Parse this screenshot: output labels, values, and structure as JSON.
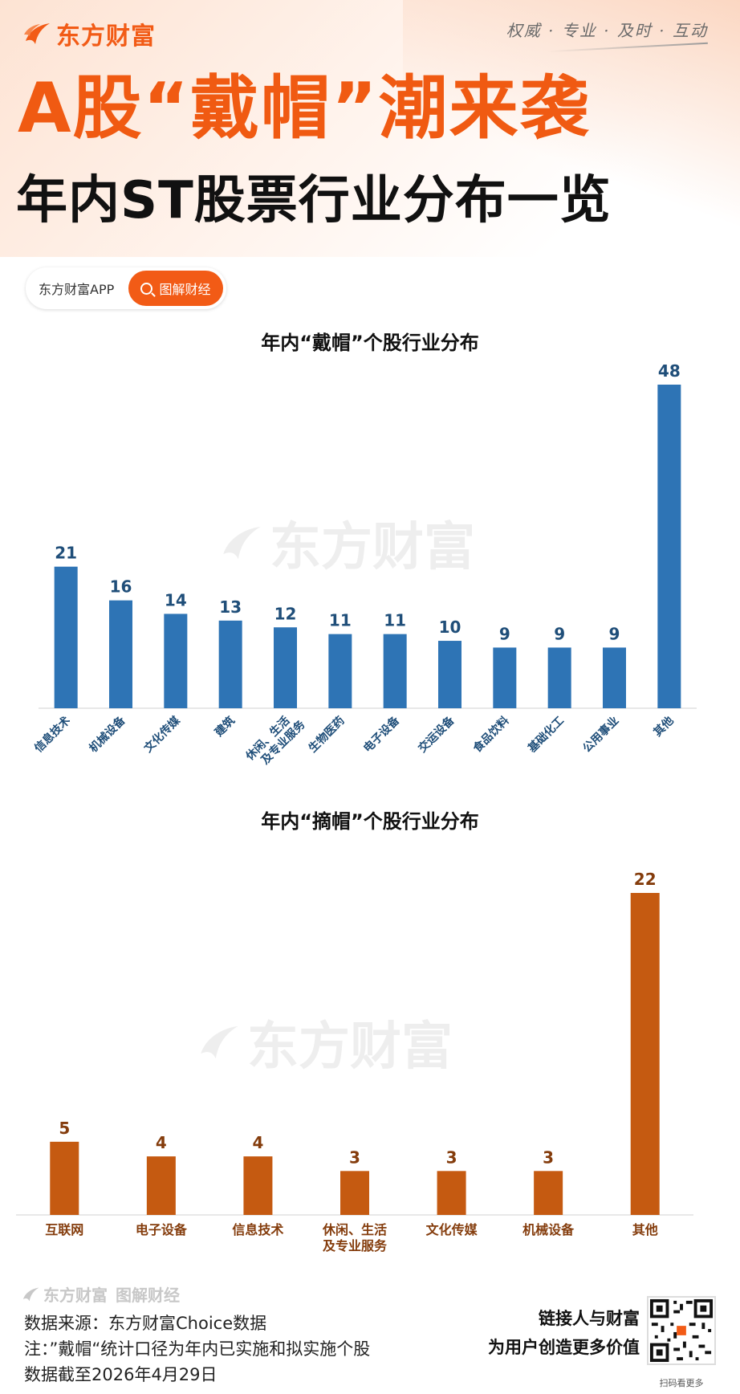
{
  "brand": {
    "name": "东方财富",
    "slogan": "权威 · 专业 · 及时 · 互动",
    "accent": "#f25b16"
  },
  "title": {
    "line1": "A股“戴帽”潮来袭",
    "line2": "年内ST股票行业分布一览"
  },
  "search": {
    "app_label": "东方财富APP",
    "button_label": "图解财经",
    "icon": "search-icon"
  },
  "watermark": "东方财富",
  "chart_data": [
    {
      "type": "bar",
      "title": "年内“戴帽”个股行业分布",
      "color": "#2e74b5",
      "label_color": "#1f4e79",
      "categories": [
        "信息技术",
        "机械设备",
        "文化传媒",
        "建筑",
        "休闲、生活|及专业服务",
        "生物医药",
        "电子设备",
        "交运设备",
        "食品饮料",
        "基础化工",
        "公用事业",
        "其他"
      ],
      "values": [
        21,
        16,
        14,
        13,
        12,
        11,
        11,
        10,
        9,
        9,
        9,
        48
      ],
      "ylim": [
        0,
        48
      ],
      "grid": false
    },
    {
      "type": "bar",
      "title": "年内“摘帽”个股行业分布",
      "color": "#c55a11",
      "label_color": "#843c0c",
      "categories": [
        "互联网",
        "电子设备",
        "信息技术",
        "休闲、生活|及专业服务",
        "文化传媒",
        "机械设备",
        "其他"
      ],
      "values": [
        5,
        4,
        4,
        3,
        3,
        3,
        22
      ],
      "ylim": [
        0,
        22
      ],
      "grid": false
    }
  ],
  "footer": {
    "brand": "东方财富",
    "section": "图解财经",
    "source": "数据来源：东方财富Choice数据",
    "note": "注：”戴帽“统计口径为年内已实施和拟实施个股",
    "date": "数据截至2026年4月29日",
    "tagline1": "链接人与财富",
    "tagline2": "为用户创造更多价值",
    "qr_caption": "扫码看更多"
  }
}
